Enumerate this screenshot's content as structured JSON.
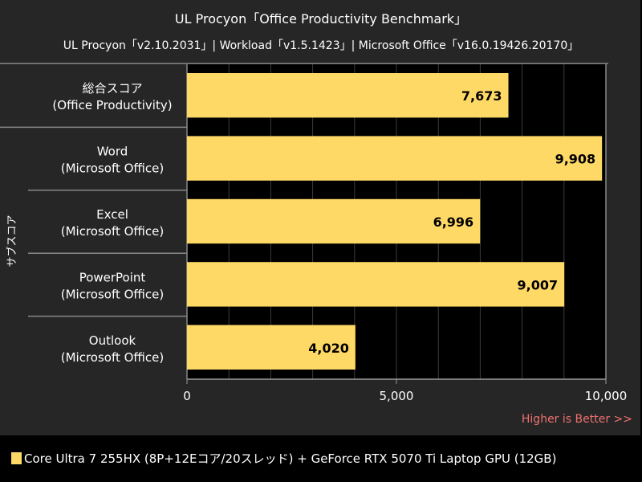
{
  "chart_data": {
    "type": "bar",
    "orientation": "horizontal",
    "title": "UL Procyon「Office Productivity Benchmark」",
    "subtitle": "UL Procyon「v2.10.2031」| Workload「v1.5.1423」| Microsoft Office「v16.0.19426.20170」",
    "ylabel": "サブスコア",
    "categories": [
      [
        "総合スコア",
        "(Office Productivity)"
      ],
      [
        "Word",
        "(Microsoft Office)"
      ],
      [
        "Excel",
        "(Microsoft Office)"
      ],
      [
        "PowerPoint",
        "(Microsoft Office)"
      ],
      [
        "Outlook",
        "(Microsoft Office)"
      ]
    ],
    "series": [
      {
        "name": "Core Ultra 7 255HX (8P+12Eコア/20スレッド) + GeForce RTX 5070 Ti Laptop GPU (12GB)",
        "values": [
          7673,
          9908,
          6996,
          9007,
          4020
        ],
        "labels": [
          "7,673",
          "9,908",
          "6,996",
          "9,007",
          "4,020"
        ],
        "color": "#FFD966"
      }
    ],
    "xlim": [
      0,
      10000
    ],
    "xticks": [
      0,
      5000,
      10000
    ],
    "xtick_labels": [
      "0",
      "5,000",
      "10,000"
    ],
    "grid": true,
    "legend_position": "bottom-left",
    "annotation": "Higher is Better >>"
  }
}
